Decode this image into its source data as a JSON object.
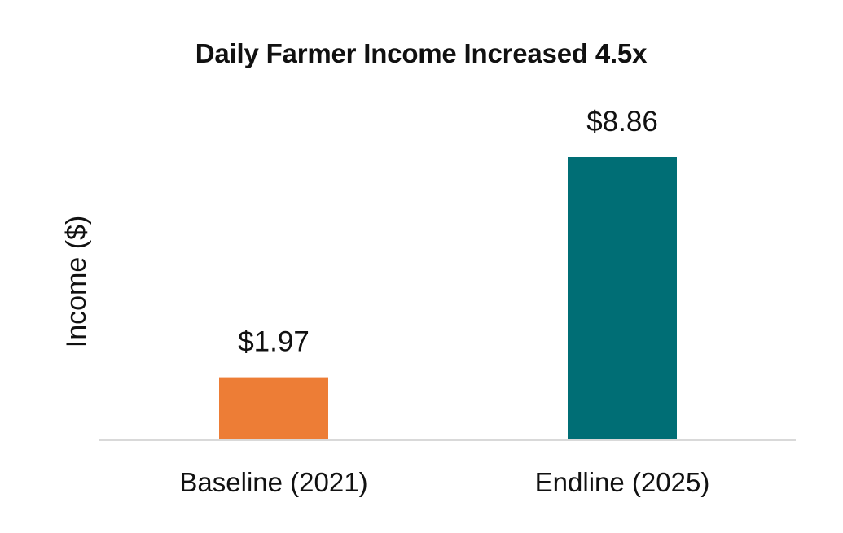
{
  "chart_data": {
    "type": "bar",
    "title": "Daily Farmer Income Increased 4.5x",
    "xlabel": "",
    "ylabel": "Income ($)",
    "categories": [
      "Baseline (2021)",
      "Endline (2025)"
    ],
    "values": [
      1.97,
      8.86
    ],
    "data_labels": [
      "$1.97",
      "$8.86"
    ],
    "bar_colors": [
      "#ED7D36",
      "#006E75"
    ],
    "ylim": [
      0,
      10
    ],
    "grid": false,
    "legend": "none",
    "axis_line_color": "#D9D9D9"
  }
}
